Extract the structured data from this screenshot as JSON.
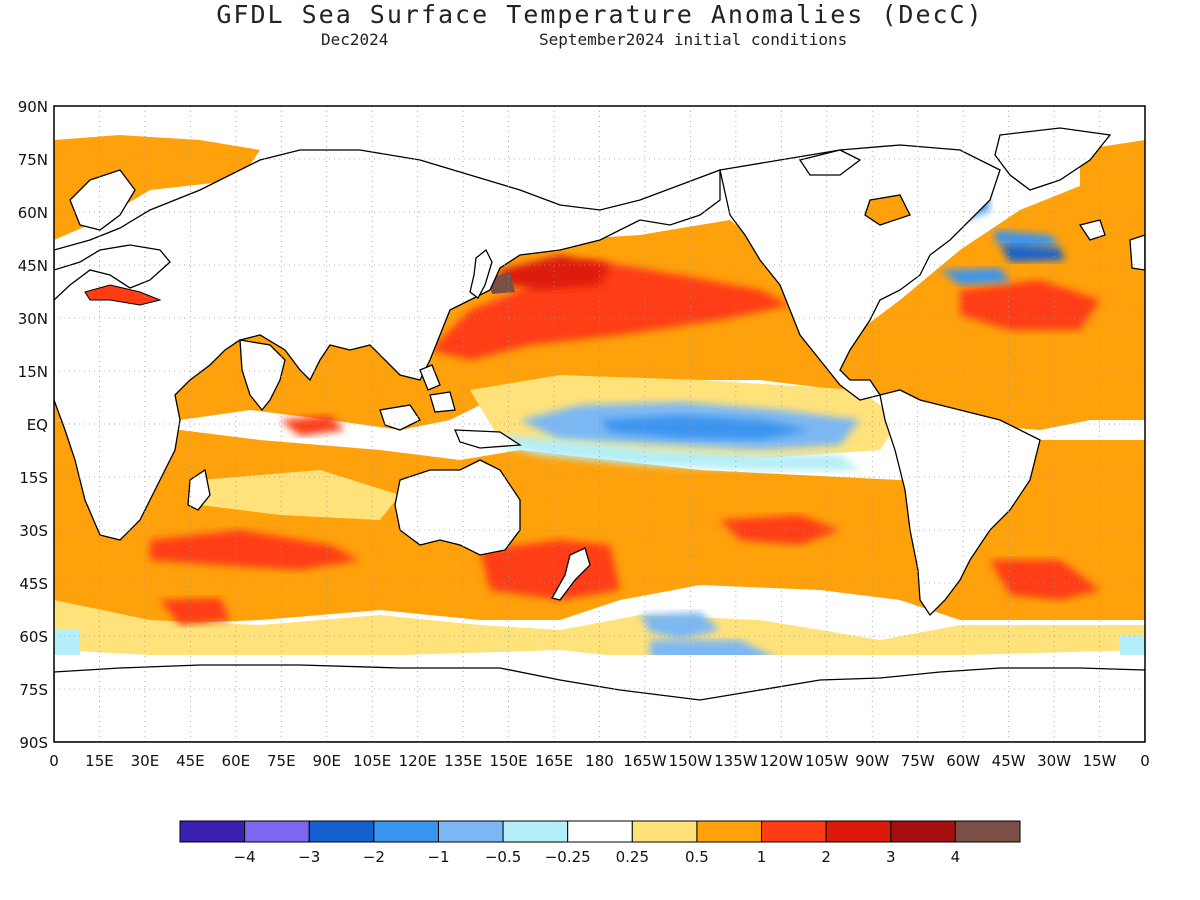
{
  "title": "GFDL Sea Surface Temperature Anomalies (DecC)",
  "subtitle_left": "Dec2024",
  "subtitle_right": "September2024 initial conditions",
  "map": {
    "lon_labels": [
      "0",
      "15E",
      "30E",
      "45E",
      "60E",
      "75E",
      "90E",
      "105E",
      "120E",
      "135E",
      "150E",
      "165E",
      "180",
      "165W",
      "150W",
      "135W",
      "120W",
      "105W",
      "90W",
      "75W",
      "60W",
      "45W",
      "30W",
      "15W",
      "0"
    ],
    "lat_labels": [
      "90N",
      "75N",
      "60N",
      "45N",
      "30N",
      "15N",
      "EQ",
      "15S",
      "30S",
      "45S",
      "60S",
      "75S",
      "90S"
    ],
    "lon_range": [
      0,
      360
    ],
    "lat_range": [
      90,
      -90
    ],
    "grid": true
  },
  "legend": {
    "colors": [
      "#3a1fb0",
      "#7b68ee",
      "#1560d0",
      "#3a95f0",
      "#7cb8f4",
      "#b4eef8",
      "#ffffff",
      "#ffe27a",
      "#ffa10a",
      "#ff3c14",
      "#dd1a0a",
      "#a50f0f",
      "#7a4f46"
    ],
    "labels": [
      "-4",
      "-3",
      "-2",
      "-1",
      "-0.5",
      "-0.25",
      "0.25",
      "0.5",
      "1",
      "2",
      "3",
      "4"
    ],
    "units": "DecC"
  },
  "colors": {
    "land": "#ffffff",
    "coast": "#000000"
  }
}
